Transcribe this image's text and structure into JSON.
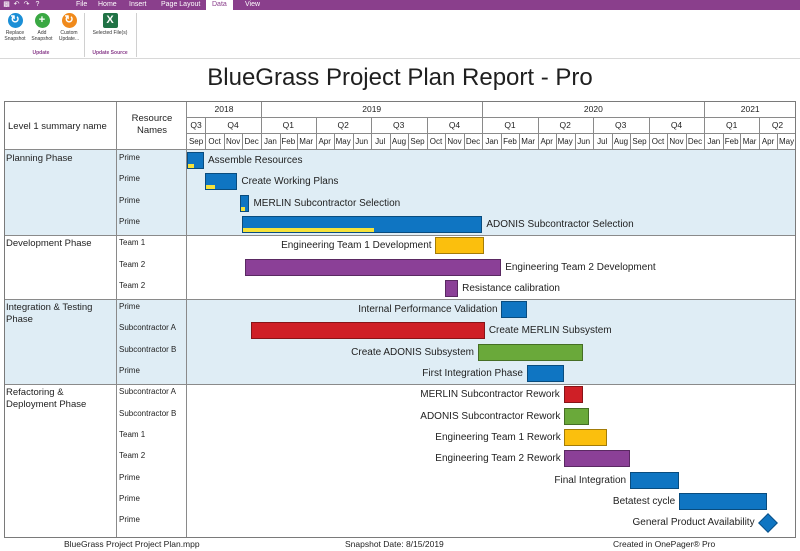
{
  "ribbon": {
    "menu": [
      "File",
      "Home",
      "Insert",
      "Page Layout",
      "Data",
      "View"
    ],
    "active_menu": "Data",
    "quick_access": [
      "save-icon",
      "undo-icon",
      "redo-icon",
      "help-icon"
    ],
    "buttons": {
      "replace_snapshot": "Replace Snapshot",
      "add_snapshot": "Add Snapshot",
      "custom_update": "Custom Update...",
      "selected_files": "Selected File(s)"
    },
    "groups": {
      "update": "Update",
      "update_source": "Update Source"
    },
    "colors": {
      "menubar": "#8a3f8c"
    }
  },
  "report": {
    "title": "BlueGrass Project Plan Report - Pro",
    "col_level1": "Level 1 summary name",
    "col_resource": "Resource Names"
  },
  "timeline": {
    "years": [
      {
        "label": "2018",
        "start": "2018-09-01",
        "end": "2019-01-01"
      },
      {
        "label": "2019",
        "start": "2019-01-01",
        "end": "2020-01-01"
      },
      {
        "label": "2020",
        "start": "2020-01-01",
        "end": "2021-01-01"
      },
      {
        "label": "2021",
        "start": "2021-01-01",
        "end": "2021-06-01"
      }
    ],
    "quarters": [
      {
        "label": "Q3",
        "start": "2018-09-01",
        "end": "2018-10-01"
      },
      {
        "label": "Q4",
        "start": "2018-10-01",
        "end": "2019-01-01"
      },
      {
        "label": "Q1",
        "start": "2019-01-01",
        "end": "2019-04-01"
      },
      {
        "label": "Q2",
        "start": "2019-04-01",
        "end": "2019-07-01"
      },
      {
        "label": "Q3",
        "start": "2019-07-01",
        "end": "2019-10-01"
      },
      {
        "label": "Q4",
        "start": "2019-10-01",
        "end": "2020-01-01"
      },
      {
        "label": "Q1",
        "start": "2020-01-01",
        "end": "2020-04-01"
      },
      {
        "label": "Q2",
        "start": "2020-04-01",
        "end": "2020-07-01"
      },
      {
        "label": "Q3",
        "start": "2020-07-01",
        "end": "2020-10-01"
      },
      {
        "label": "Q4",
        "start": "2020-10-01",
        "end": "2021-01-01"
      },
      {
        "label": "Q1",
        "start": "2021-01-01",
        "end": "2021-04-01"
      },
      {
        "label": "Q2",
        "start": "2021-04-01",
        "end": "2021-06-01"
      }
    ],
    "months": [
      "Sep",
      "Oct",
      "Nov",
      "Dec",
      "Jan",
      "Feb",
      "Mar",
      "Apr",
      "May",
      "Jun",
      "Jul",
      "Aug",
      "Sep",
      "Oct",
      "Nov",
      "Dec",
      "Jan",
      "Feb",
      "Mar",
      "Apr",
      "May",
      "Jun",
      "Jul",
      "Aug",
      "Sep",
      "Oct",
      "Nov",
      "Dec",
      "Jan",
      "Feb",
      "Mar",
      "Apr",
      "May"
    ]
  },
  "phases": [
    {
      "name": "Planning Phase",
      "shaded": true,
      "rows": [
        {
          "resource": "Prime",
          "task": "Assemble Resources",
          "start": "2018-09-01",
          "end": "2018-09-29",
          "color": "#0f75c2",
          "progress": 0.4,
          "label_side": "right"
        },
        {
          "resource": "Prime",
          "task": "Create Working Plans",
          "start": "2018-10-01",
          "end": "2018-11-23",
          "color": "#0f75c2",
          "progress": 0.3,
          "label_side": "right"
        },
        {
          "resource": "Prime",
          "task": "MERLIN Subcontractor Selection",
          "start": "2018-11-27",
          "end": "2018-12-13",
          "color": "#0f75c2",
          "progress": 0.5,
          "label_side": "right"
        },
        {
          "resource": "Prime",
          "task": "ADONIS Subcontractor Selection",
          "start": "2018-12-01",
          "end": "2020-01-01",
          "color": "#0f75c2",
          "progress": 0.55,
          "label_side": "right"
        }
      ]
    },
    {
      "name": "Development Phase",
      "shaded": false,
      "rows": [
        {
          "resource": "Team 1",
          "task": "Engineering Team 1 Development",
          "start": "2019-10-15",
          "end": "2020-01-03",
          "color": "#fbbf0d",
          "progress": 0,
          "label_side": "left"
        },
        {
          "resource": "Team 2",
          "task": "Engineering Team 2 Development",
          "start": "2018-12-05",
          "end": "2020-02-01",
          "color": "#8b4097",
          "progress": 0,
          "label_side": "right"
        },
        {
          "resource": "Team 2",
          "task": "Resistance calibration",
          "start": "2019-11-01",
          "end": "2019-11-22",
          "color": "#8b4097",
          "progress": 0,
          "label_side": "right"
        }
      ]
    },
    {
      "name": "Integration & Testing Phase",
      "shaded": true,
      "rows": [
        {
          "resource": "Prime",
          "task": "Internal Performance Validation",
          "start": "2020-02-01",
          "end": "2020-03-15",
          "color": "#0f75c2",
          "progress": 0,
          "label_side": "left"
        },
        {
          "resource": "Subcontractor A",
          "task": "Create MERLIN Subsystem",
          "start": "2018-12-15",
          "end": "2020-01-05",
          "color": "#cf1f26",
          "progress": 0,
          "label_side": "right"
        },
        {
          "resource": "Subcontractor B",
          "task": "Create ADONIS Subsystem",
          "start": "2019-12-25",
          "end": "2020-06-15",
          "color": "#6aa93a",
          "progress": 0,
          "label_side": "left"
        },
        {
          "resource": "Prime",
          "task": "First Integration Phase",
          "start": "2020-03-15",
          "end": "2020-05-15",
          "color": "#0f75c2",
          "progress": 0,
          "label_side": "left"
        }
      ]
    },
    {
      "name": "Refactoring & Deployment Phase",
      "shaded": false,
      "rows": [
        {
          "resource": "Subcontractor A",
          "task": "MERLIN Subcontractor Rework",
          "start": "2020-05-15",
          "end": "2020-06-15",
          "color": "#cf1f26",
          "progress": 0,
          "label_side": "left"
        },
        {
          "resource": "Subcontractor B",
          "task": "ADONIS Subcontractor Rework",
          "start": "2020-05-15",
          "end": "2020-06-25",
          "color": "#6aa93a",
          "progress": 0,
          "label_side": "left"
        },
        {
          "resource": "Team 1",
          "task": "Engineering Team 1 Rework",
          "start": "2020-05-15",
          "end": "2020-07-25",
          "color": "#fbbf0d",
          "progress": 0,
          "label_side": "left"
        },
        {
          "resource": "Team 2",
          "task": "Engineering Team 2 Rework",
          "start": "2020-05-15",
          "end": "2020-09-01",
          "color": "#8b4097",
          "progress": 0,
          "label_side": "left"
        },
        {
          "resource": "Prime",
          "task": "Final Integration",
          "start": "2020-09-01",
          "end": "2020-11-20",
          "color": "#0f75c2",
          "progress": 0,
          "label_side": "left"
        },
        {
          "resource": "Prime",
          "task": "Betatest cycle",
          "start": "2020-11-20",
          "end": "2021-04-15",
          "color": "#0f75c2",
          "progress": 0,
          "label_side": "left"
        },
        {
          "resource": "Prime",
          "task": "General Product Availability",
          "start": "2021-04-15",
          "end": "2021-04-15",
          "color": "#0f75c2",
          "progress": 0,
          "label_side": "left",
          "milestone": true
        }
      ]
    }
  ],
  "footer": {
    "file": "BlueGrass Project Project Plan.mpp",
    "snapshot": "Snapshot Date: 8/15/2019",
    "created": "Created in OnePager® Pro"
  }
}
